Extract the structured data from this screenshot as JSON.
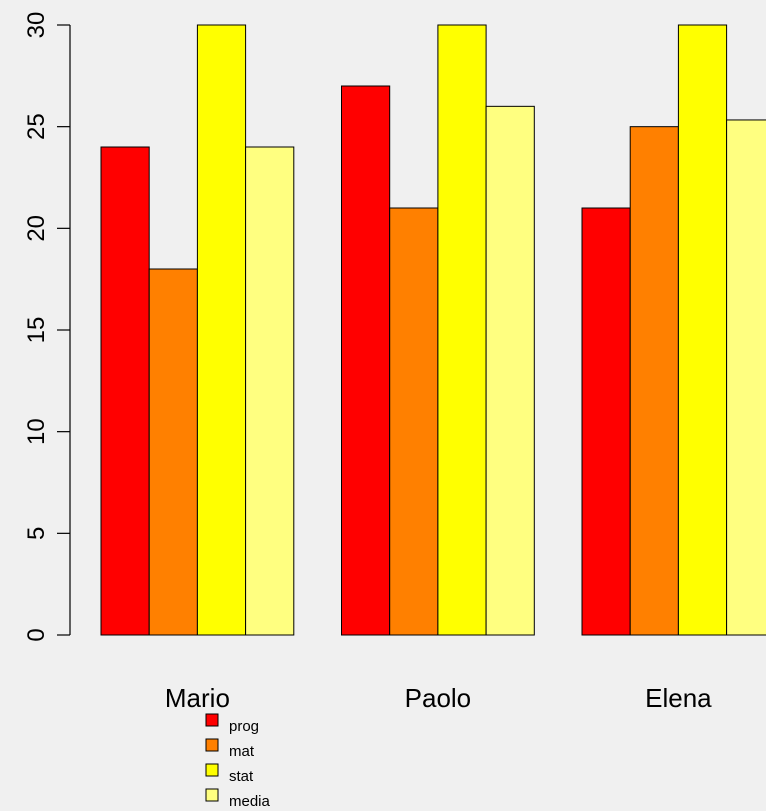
{
  "chart_data": {
    "type": "bar",
    "grouping": "grouped",
    "categories": [
      "Mario",
      "Paolo",
      "Elena"
    ],
    "series": [
      {
        "name": "prog",
        "values": [
          24,
          27,
          21
        ],
        "color": "#ff0000"
      },
      {
        "name": "mat",
        "values": [
          18,
          21,
          25
        ],
        "color": "#ff8000"
      },
      {
        "name": "stat",
        "values": [
          30,
          30,
          30
        ],
        "color": "#ffff00"
      },
      {
        "name": "media",
        "values": [
          24,
          26,
          25.33
        ],
        "color": "#ffff80"
      }
    ],
    "y_ticks": [
      0,
      5,
      10,
      15,
      20,
      25,
      30
    ],
    "ylim": [
      0,
      30
    ],
    "title": "",
    "xlabel": "",
    "ylabel": "",
    "legend_position": "bottom-left",
    "grid": false,
    "colors": {
      "background": "#f0f0f0",
      "axis": "#000000",
      "bar_border": "#000000"
    }
  }
}
